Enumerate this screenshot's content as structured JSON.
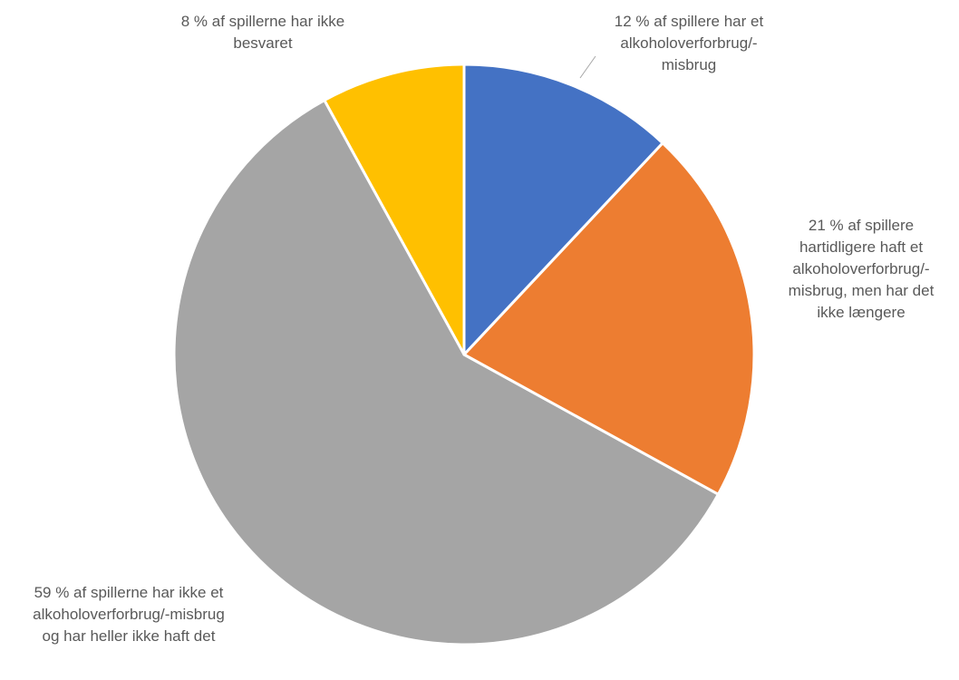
{
  "chart_data": {
    "type": "pie",
    "values": [
      12,
      21,
      59,
      8
    ],
    "value_labels": [
      "12 % af spillere har et alkoholoverforbrug/-misbrug",
      "21 % af spillere hartidligere haft et alkoholoverforbrug/-misbrug, men har det ikke længere",
      "59 % af spillerne har ikke et alkoholoverforbrug/-misbrug og har heller ikke haft det",
      "8 % af spillerne har ikke besvaret"
    ],
    "colors": [
      "#4472c4",
      "#ed7d31",
      "#a5a5a5",
      "#ffc000"
    ]
  }
}
